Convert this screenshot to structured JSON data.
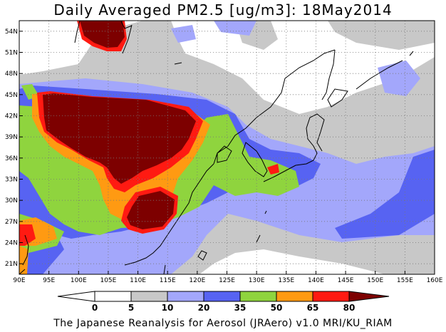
{
  "title": "Daily Averaged PM2.5 [ug/m3]: 18May2014",
  "footer": "The Japanese Reanalysis for Aerosol (JRAero) v1.0 MRI/KU_RIAM",
  "map": {
    "lon_range": [
      90,
      160
    ],
    "lat_range": [
      19.5,
      55.5
    ],
    "lon_ticks": [
      {
        "value": 90,
        "label": "90E"
      },
      {
        "value": 95,
        "label": "95E"
      },
      {
        "value": 100,
        "label": "100E"
      },
      {
        "value": 105,
        "label": "105E"
      },
      {
        "value": 110,
        "label": "110E"
      },
      {
        "value": 115,
        "label": "115E"
      },
      {
        "value": 120,
        "label": "120E"
      },
      {
        "value": 125,
        "label": "125E"
      },
      {
        "value": 130,
        "label": "130E"
      },
      {
        "value": 135,
        "label": "135E"
      },
      {
        "value": 140,
        "label": "140E"
      },
      {
        "value": 145,
        "label": "145E"
      },
      {
        "value": 150,
        "label": "150E"
      },
      {
        "value": 155,
        "label": "155E"
      },
      {
        "value": 160,
        "label": "160E"
      }
    ],
    "lat_ticks": [
      {
        "value": 21,
        "label": "21N"
      },
      {
        "value": 24,
        "label": "24N"
      },
      {
        "value": 27,
        "label": "27N"
      },
      {
        "value": 30,
        "label": "30N"
      },
      {
        "value": 33,
        "label": "33N"
      },
      {
        "value": 36,
        "label": "36N"
      },
      {
        "value": 39,
        "label": "39N"
      },
      {
        "value": 42,
        "label": "42N"
      },
      {
        "value": 45,
        "label": "45N"
      },
      {
        "value": 48,
        "label": "48N"
      },
      {
        "value": 51,
        "label": "51N"
      },
      {
        "value": 54,
        "label": "54N"
      }
    ]
  },
  "legend": {
    "labels": [
      "0",
      "5",
      "10",
      "20",
      "35",
      "50",
      "65",
      "80"
    ],
    "colors": [
      "#ffffff",
      "#c8c8c8",
      "#a3a7fb",
      "#5763f2",
      "#8fd43e",
      "#ff9a12",
      "#ff1a12",
      "#7d0000"
    ]
  },
  "field_colors": {
    "bg": "#ffffff",
    "c5": "#c8c8c8",
    "c10": "#a3a7fb",
    "c20": "#5763f2",
    "c35": "#8fd43e",
    "c50": "#ff9a12",
    "c65": "#ff1a12",
    "c80": "#7d0000"
  }
}
